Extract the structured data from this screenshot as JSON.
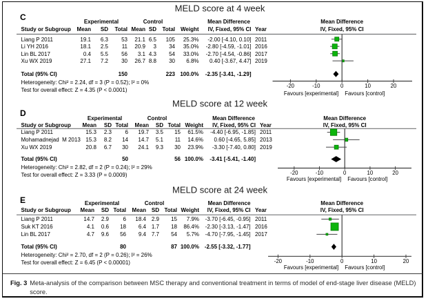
{
  "figure": {
    "caption_label": "Fig. 3",
    "caption_text": "Meta-analysis of the comparison between MSC therapy and conventional treatment in terms of model of end-stage liver disease (MELD) score."
  },
  "columns": {
    "study": "Study or Subgroup",
    "experimental": "Experimental",
    "control": "Control",
    "mean": "Mean",
    "sd": "SD",
    "total": "Total",
    "weight": "Weight",
    "mean_difference": "Mean Difference",
    "ci_method": "IV, Fixed, 95% CI",
    "year": "Year"
  },
  "axis": {
    "ticks": [
      -20,
      -10,
      0,
      10,
      20
    ],
    "favours_left": "Favours [experimental]",
    "favours_right": "Favours [control]"
  },
  "colors": {
    "square_fill": "#0cb50c",
    "square_stroke": "#0a7d0a",
    "diamond": "#000000",
    "ci_line": "#58585a",
    "axis_line": "#3f3f3f",
    "header_rule": "#737476",
    "text": "#000000"
  },
  "chart_data": [
    {
      "type": "forest",
      "panel_letter": "C",
      "title": "MELD score at 4 week",
      "effect_label": "Mean Difference",
      "method_label": "IV, Fixed, 95% CI",
      "xlim": [
        -20,
        20
      ],
      "studies": [
        {
          "name": "Liang P 2011",
          "exp_mean": "19.1",
          "exp_sd": "6.3",
          "exp_total": "53",
          "ctl_mean": "21.1",
          "ctl_sd": "6.5",
          "ctl_total": "105",
          "weight": "25.3%",
          "ci_text": "-2.00 [-4.10, 0.10]",
          "year": "2011",
          "md": -2.0,
          "ci_low": -4.1,
          "ci_high": 0.1,
          "weight_pct": 25.3
        },
        {
          "name": "Li YH 2016",
          "exp_mean": "18.1",
          "exp_sd": "2.5",
          "exp_total": "11",
          "ctl_mean": "20.9",
          "ctl_sd": "3",
          "ctl_total": "34",
          "weight": "35.0%",
          "ci_text": "-2.80 [-4.59, -1.01]",
          "year": "2016",
          "md": -2.8,
          "ci_low": -4.59,
          "ci_high": -1.01,
          "weight_pct": 35.0
        },
        {
          "name": "Lin BL 2017",
          "exp_mean": "0.4",
          "exp_sd": "5.5",
          "exp_total": "56",
          "ctl_mean": "3.1",
          "ctl_sd": "4.3",
          "ctl_total": "54",
          "weight": "33.0%",
          "ci_text": "-2.70 [-4.54, -0.86]",
          "year": "2017",
          "md": -2.7,
          "ci_low": -4.54,
          "ci_high": -0.86,
          "weight_pct": 33.0
        },
        {
          "name": "Xu WX 2019",
          "exp_mean": "27.1",
          "exp_sd": "7.2",
          "exp_total": "30",
          "ctl_mean": "26.7",
          "ctl_sd": "8.8",
          "ctl_total": "30",
          "weight": "6.8%",
          "ci_text": "0.40 [-3.67, 4.47]",
          "year": "2019",
          "md": 0.4,
          "ci_low": -3.67,
          "ci_high": 4.47,
          "weight_pct": 6.8
        }
      ],
      "total": {
        "label": "Total (95% CI)",
        "exp_total": "150",
        "ctl_total": "223",
        "weight": "100.0%",
        "ci_text": "-2.35 [-3.41, -1.29]",
        "md": -2.35,
        "ci_low": -3.41,
        "ci_high": -1.29
      },
      "heterogeneity": "Heterogeneity: Chi² = 2.24, df = 3 (P = 0.52); I² = 0%",
      "overall_effect": "Test for overall effect: Z = 4.35 (P < 0.0001)"
    },
    {
      "type": "forest",
      "panel_letter": "D",
      "title": "MELD score at 12 week",
      "effect_label": "Mean Difference",
      "method_label": "IV, Fixed, 95% CI",
      "xlim": [
        -20,
        20
      ],
      "studies": [
        {
          "name": "Liang P 2011",
          "exp_mean": "15.3",
          "exp_sd": "2.3",
          "exp_total": "6",
          "ctl_mean": "19.7",
          "ctl_sd": "3.5",
          "ctl_total": "15",
          "weight": "61.5%",
          "ci_text": "-4.40 [-6.95, -1.85]",
          "year": "2011",
          "md": -4.4,
          "ci_low": -6.95,
          "ci_high": -1.85,
          "weight_pct": 61.5
        },
        {
          "name": "Mohamadnejad  M 2013",
          "exp_mean": "15.3",
          "exp_sd": "8.2",
          "exp_total": "14",
          "ctl_mean": "14.7",
          "ctl_sd": "5.1",
          "ctl_total": "11",
          "weight": "14.6%",
          "ci_text": "0.60 [-4.65, 5.85]",
          "year": "2013",
          "md": 0.6,
          "ci_low": -4.65,
          "ci_high": 5.85,
          "weight_pct": 14.6
        },
        {
          "name": "Xu WX 2019",
          "exp_mean": "20.8",
          "exp_sd": "6.7",
          "exp_total": "30",
          "ctl_mean": "24.1",
          "ctl_sd": "9.3",
          "ctl_total": "30",
          "weight": "23.9%",
          "ci_text": "-3.30 [-7.40, 0.80]",
          "year": "2019",
          "md": -3.3,
          "ci_low": -7.4,
          "ci_high": 0.8,
          "weight_pct": 23.9
        }
      ],
      "total": {
        "label": "Total (95% CI)",
        "exp_total": "50",
        "ctl_total": "56",
        "weight": "100.0%",
        "ci_text": "-3.41 [-5.41, -1.40]",
        "md": -3.41,
        "ci_low": -5.41,
        "ci_high": -1.4
      },
      "heterogeneity": "Heterogeneity: Chi² = 2.82, df = 2 (P = 0.24); I² = 29%",
      "overall_effect": "Test for overall effect: Z = 3.33 (P = 0.0009)"
    },
    {
      "type": "forest",
      "panel_letter": "E",
      "title": "MELD score at 24 week",
      "effect_label": "Mean Difference",
      "method_label": "IV, Fixed, 95% CI",
      "xlim": [
        -20,
        20
      ],
      "studies": [
        {
          "name": "Liang P 2011",
          "exp_mean": "14.7",
          "exp_sd": "2.9",
          "exp_total": "6",
          "ctl_mean": "18.4",
          "ctl_sd": "2.9",
          "ctl_total": "15",
          "weight": "7.9%",
          "ci_text": "-3.70 [-6.45, -0.95]",
          "year": "2011",
          "md": -3.7,
          "ci_low": -6.45,
          "ci_high": -0.95,
          "weight_pct": 7.9
        },
        {
          "name": "Suk KT 2016",
          "exp_mean": "4.1",
          "exp_sd": "0.6",
          "exp_total": "18",
          "ctl_mean": "6.4",
          "ctl_sd": "1.7",
          "ctl_total": "18",
          "weight": "86.4%",
          "ci_text": "-2.30 [-3.13, -1.47]",
          "year": "2016",
          "md": -2.3,
          "ci_low": -3.13,
          "ci_high": -1.47,
          "weight_pct": 86.4
        },
        {
          "name": "Lin BL 2017",
          "exp_mean": "4.7",
          "exp_sd": "9.6",
          "exp_total": "56",
          "ctl_mean": "9.4",
          "ctl_sd": "7.7",
          "ctl_total": "54",
          "weight": "5.7%",
          "ci_text": "-4.70 [-7.95, -1.45]",
          "year": "2017",
          "md": -4.7,
          "ci_low": -7.95,
          "ci_high": -1.45,
          "weight_pct": 5.7
        }
      ],
      "total": {
        "label": "Total (95% CI)",
        "exp_total": "80",
        "ctl_total": "87",
        "weight": "100.0%",
        "ci_text": "-2.55 [-3.32, -1.77]",
        "md": -2.55,
        "ci_low": -3.32,
        "ci_high": -1.77
      },
      "heterogeneity": "Heterogeneity: Chi² = 2.70, df = 2 (P = 0.26); I² = 26%",
      "overall_effect": "Test for overall effect: Z = 6.45 (P < 0.00001)"
    }
  ]
}
